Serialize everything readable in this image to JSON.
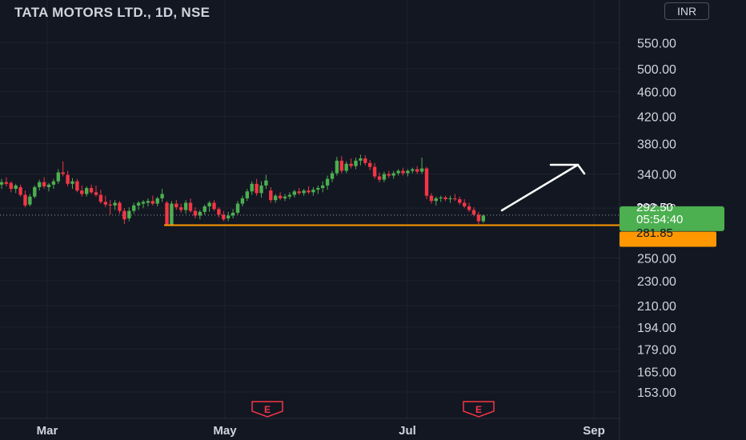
{
  "title": "TATA MOTORS LTD., 1D, NSE",
  "currency": "INR",
  "colors": {
    "background": "#131722",
    "up": "#4caf50",
    "down": "#f23645",
    "support": "#ff9800",
    "text": "#d1d4dc",
    "arrow": "#ffffff"
  },
  "chart_data": {
    "type": "candlestick",
    "y_axis": {
      "scale": "log",
      "ticks": [
        550,
        500,
        460,
        420,
        380,
        340,
        300,
        250,
        230,
        210,
        194,
        179,
        165,
        153
      ],
      "tick_labels": [
        "550.00",
        "500.00",
        "460.00",
        "420.00",
        "380.00",
        "340.00",
        "300.00",
        "250.00",
        "230.00",
        "210.00",
        "194.00",
        "179.00",
        "165.00",
        "153.00"
      ],
      "range": [
        150,
        560
      ]
    },
    "x_axis": {
      "tick_labels": [
        "Mar",
        "May",
        "Jul",
        "Sep"
      ]
    },
    "current_price": {
      "label": "292.50",
      "countdown": "05:54:40",
      "value": 292.5
    },
    "support_line": {
      "label": "281.85",
      "value": 281.85
    },
    "earnings_markers": [
      "E",
      "E"
    ],
    "candles": [
      {
        "o": 327,
        "h": 334,
        "l": 322,
        "c": 330
      },
      {
        "o": 330,
        "h": 336,
        "l": 325,
        "c": 328
      },
      {
        "o": 329,
        "h": 331,
        "l": 318,
        "c": 322
      },
      {
        "o": 322,
        "h": 328,
        "l": 317,
        "c": 326
      },
      {
        "o": 324,
        "h": 327,
        "l": 313,
        "c": 315
      },
      {
        "o": 315,
        "h": 320,
        "l": 301,
        "c": 303
      },
      {
        "o": 304,
        "h": 316,
        "l": 302,
        "c": 313
      },
      {
        "o": 313,
        "h": 326,
        "l": 311,
        "c": 324
      },
      {
        "o": 324,
        "h": 333,
        "l": 320,
        "c": 330
      },
      {
        "o": 330,
        "h": 336,
        "l": 322,
        "c": 325
      },
      {
        "o": 324,
        "h": 329,
        "l": 319,
        "c": 327
      },
      {
        "o": 327,
        "h": 334,
        "l": 322,
        "c": 331
      },
      {
        "o": 331,
        "h": 346,
        "l": 328,
        "c": 342
      },
      {
        "o": 342,
        "h": 356,
        "l": 337,
        "c": 340
      },
      {
        "o": 339,
        "h": 344,
        "l": 325,
        "c": 328
      },
      {
        "o": 328,
        "h": 335,
        "l": 322,
        "c": 331
      },
      {
        "o": 331,
        "h": 334,
        "l": 318,
        "c": 320
      },
      {
        "o": 320,
        "h": 326,
        "l": 313,
        "c": 316
      },
      {
        "o": 316,
        "h": 325,
        "l": 313,
        "c": 323
      },
      {
        "o": 323,
        "h": 327,
        "l": 316,
        "c": 318
      },
      {
        "o": 318,
        "h": 326,
        "l": 313,
        "c": 315
      },
      {
        "o": 315,
        "h": 321,
        "l": 305,
        "c": 307
      },
      {
        "o": 307,
        "h": 314,
        "l": 301,
        "c": 304
      },
      {
        "o": 304,
        "h": 309,
        "l": 293,
        "c": 303
      },
      {
        "o": 303,
        "h": 309,
        "l": 298,
        "c": 306
      },
      {
        "o": 306,
        "h": 308,
        "l": 294,
        "c": 297
      },
      {
        "o": 297,
        "h": 300,
        "l": 283,
        "c": 288
      },
      {
        "o": 289,
        "h": 301,
        "l": 286,
        "c": 297
      },
      {
        "o": 297,
        "h": 306,
        "l": 294,
        "c": 303
      },
      {
        "o": 303,
        "h": 308,
        "l": 298,
        "c": 306
      },
      {
        "o": 305,
        "h": 309,
        "l": 300,
        "c": 307
      },
      {
        "o": 306,
        "h": 311,
        "l": 302,
        "c": 308
      },
      {
        "o": 308,
        "h": 314,
        "l": 303,
        "c": 305
      },
      {
        "o": 305,
        "h": 313,
        "l": 302,
        "c": 311
      },
      {
        "o": 311,
        "h": 322,
        "l": 307,
        "c": 316
      },
      {
        "o": 306,
        "h": 308,
        "l": 281,
        "c": 282
      },
      {
        "o": 282,
        "h": 308,
        "l": 281,
        "c": 305
      },
      {
        "o": 305,
        "h": 309,
        "l": 298,
        "c": 301
      },
      {
        "o": 301,
        "h": 305,
        "l": 295,
        "c": 298
      },
      {
        "o": 298,
        "h": 309,
        "l": 294,
        "c": 306
      },
      {
        "o": 306,
        "h": 311,
        "l": 295,
        "c": 297
      },
      {
        "o": 297,
        "h": 301,
        "l": 289,
        "c": 292
      },
      {
        "o": 292,
        "h": 298,
        "l": 288,
        "c": 296
      },
      {
        "o": 296,
        "h": 304,
        "l": 293,
        "c": 302
      },
      {
        "o": 302,
        "h": 308,
        "l": 296,
        "c": 306
      },
      {
        "o": 306,
        "h": 309,
        "l": 297,
        "c": 299
      },
      {
        "o": 299,
        "h": 301,
        "l": 290,
        "c": 293
      },
      {
        "o": 293,
        "h": 297,
        "l": 286,
        "c": 288
      },
      {
        "o": 289,
        "h": 296,
        "l": 286,
        "c": 292
      },
      {
        "o": 292,
        "h": 299,
        "l": 289,
        "c": 295
      },
      {
        "o": 295,
        "h": 308,
        "l": 293,
        "c": 305
      },
      {
        "o": 305,
        "h": 314,
        "l": 302,
        "c": 311
      },
      {
        "o": 311,
        "h": 322,
        "l": 308,
        "c": 319
      },
      {
        "o": 319,
        "h": 331,
        "l": 315,
        "c": 328
      },
      {
        "o": 328,
        "h": 334,
        "l": 314,
        "c": 317
      },
      {
        "o": 317,
        "h": 331,
        "l": 312,
        "c": 326
      },
      {
        "o": 326,
        "h": 339,
        "l": 322,
        "c": 332
      },
      {
        "o": 320,
        "h": 324,
        "l": 306,
        "c": 309
      },
      {
        "o": 309,
        "h": 316,
        "l": 306,
        "c": 314
      },
      {
        "o": 314,
        "h": 318,
        "l": 309,
        "c": 311
      },
      {
        "o": 311,
        "h": 316,
        "l": 308,
        "c": 313
      },
      {
        "o": 313,
        "h": 318,
        "l": 310,
        "c": 315
      },
      {
        "o": 315,
        "h": 321,
        "l": 312,
        "c": 319
      },
      {
        "o": 319,
        "h": 323,
        "l": 315,
        "c": 317
      },
      {
        "o": 317,
        "h": 322,
        "l": 314,
        "c": 320
      },
      {
        "o": 320,
        "h": 325,
        "l": 316,
        "c": 318
      },
      {
        "o": 318,
        "h": 324,
        "l": 314,
        "c": 321
      },
      {
        "o": 321,
        "h": 326,
        "l": 316,
        "c": 323
      },
      {
        "o": 323,
        "h": 331,
        "l": 318,
        "c": 326
      },
      {
        "o": 326,
        "h": 338,
        "l": 321,
        "c": 334
      },
      {
        "o": 334,
        "h": 344,
        "l": 330,
        "c": 341
      },
      {
        "o": 341,
        "h": 362,
        "l": 338,
        "c": 357
      },
      {
        "o": 357,
        "h": 363,
        "l": 341,
        "c": 344
      },
      {
        "o": 344,
        "h": 356,
        "l": 341,
        "c": 353
      },
      {
        "o": 353,
        "h": 360,
        "l": 347,
        "c": 350
      },
      {
        "o": 350,
        "h": 361,
        "l": 346,
        "c": 357
      },
      {
        "o": 357,
        "h": 365,
        "l": 351,
        "c": 360
      },
      {
        "o": 360,
        "h": 364,
        "l": 351,
        "c": 354
      },
      {
        "o": 354,
        "h": 358,
        "l": 345,
        "c": 349
      },
      {
        "o": 349,
        "h": 354,
        "l": 334,
        "c": 337
      },
      {
        "o": 337,
        "h": 342,
        "l": 330,
        "c": 333
      },
      {
        "o": 333,
        "h": 343,
        "l": 330,
        "c": 340
      },
      {
        "o": 340,
        "h": 344,
        "l": 335,
        "c": 338
      },
      {
        "o": 338,
        "h": 344,
        "l": 334,
        "c": 341
      },
      {
        "o": 341,
        "h": 346,
        "l": 338,
        "c": 344
      },
      {
        "o": 344,
        "h": 348,
        "l": 338,
        "c": 341
      },
      {
        "o": 341,
        "h": 346,
        "l": 337,
        "c": 344
      },
      {
        "o": 344,
        "h": 348,
        "l": 341,
        "c": 346
      },
      {
        "o": 346,
        "h": 350,
        "l": 340,
        "c": 343
      },
      {
        "o": 343,
        "h": 361,
        "l": 340,
        "c": 347
      },
      {
        "o": 347,
        "h": 349,
        "l": 310,
        "c": 314
      },
      {
        "o": 314,
        "h": 317,
        "l": 305,
        "c": 308
      },
      {
        "o": 308,
        "h": 313,
        "l": 303,
        "c": 311
      },
      {
        "o": 311,
        "h": 314,
        "l": 307,
        "c": 312
      },
      {
        "o": 312,
        "h": 314,
        "l": 308,
        "c": 310
      },
      {
        "o": 310,
        "h": 314,
        "l": 306,
        "c": 311
      },
      {
        "o": 311,
        "h": 316,
        "l": 308,
        "c": 310
      },
      {
        "o": 310,
        "h": 313,
        "l": 304,
        "c": 306
      },
      {
        "o": 306,
        "h": 310,
        "l": 300,
        "c": 302
      },
      {
        "o": 302,
        "h": 306,
        "l": 296,
        "c": 298
      },
      {
        "o": 298,
        "h": 301,
        "l": 291,
        "c": 293
      },
      {
        "o": 293,
        "h": 296,
        "l": 283,
        "c": 286
      },
      {
        "o": 286,
        "h": 293,
        "l": 284,
        "c": 292
      }
    ]
  }
}
